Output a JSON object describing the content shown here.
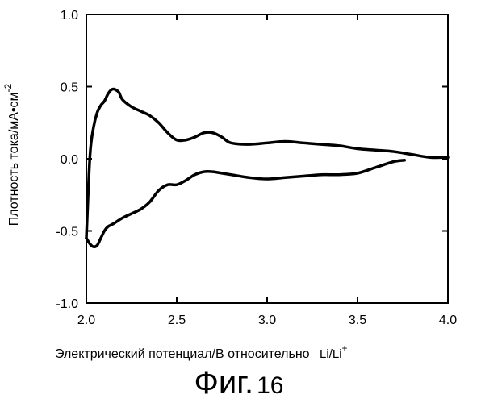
{
  "chart_data": {
    "type": "line",
    "xlabel": "Электрический потенциал/В относительно",
    "xlabel_unit": "Li/Li",
    "xlabel_unit_sup": "+",
    "ylabel": "Плотность тока/мА•см",
    "ylabel_sup": "-2",
    "xlim": [
      2.0,
      4.0
    ],
    "ylim": [
      -1.0,
      1.0
    ],
    "x_ticks": [
      "2.0",
      "2.5",
      "3.0",
      "3.5",
      "4.0"
    ],
    "y_ticks": [
      "1.0",
      "0.5",
      "0.0",
      "-0.5",
      "-1.0"
    ],
    "grid": false,
    "series": [
      {
        "color": "#000000",
        "x": [
          2.0,
          2.02,
          2.04,
          2.06,
          2.08,
          2.1,
          2.12,
          2.14,
          2.16,
          2.18,
          2.2,
          2.25,
          2.3,
          2.35,
          2.4,
          2.45,
          2.5,
          2.55,
          2.6,
          2.65,
          2.7,
          2.75,
          2.8,
          2.9,
          3.0,
          3.1,
          3.2,
          3.3,
          3.4,
          3.5,
          3.6,
          3.7,
          3.8,
          3.9,
          4.0
        ],
        "y": [
          -0.55,
          0.02,
          0.22,
          0.32,
          0.37,
          0.4,
          0.45,
          0.48,
          0.48,
          0.46,
          0.41,
          0.36,
          0.33,
          0.3,
          0.25,
          0.18,
          0.13,
          0.13,
          0.15,
          0.18,
          0.18,
          0.15,
          0.11,
          0.1,
          0.11,
          0.12,
          0.11,
          0.1,
          0.09,
          0.07,
          0.06,
          0.05,
          0.03,
          0.01,
          0.01
        ]
      },
      {
        "color": "#000000",
        "x": [
          2.0,
          2.02,
          2.04,
          2.06,
          2.08,
          2.1,
          2.12,
          2.15,
          2.2,
          2.25,
          2.3,
          2.35,
          2.4,
          2.45,
          2.5,
          2.55,
          2.6,
          2.65,
          2.7,
          2.75,
          2.8,
          2.9,
          3.0,
          3.1,
          3.2,
          3.3,
          3.4,
          3.5,
          3.6,
          3.7,
          3.76
        ],
        "y": [
          -0.55,
          -0.59,
          -0.61,
          -0.6,
          -0.55,
          -0.5,
          -0.47,
          -0.45,
          -0.41,
          -0.38,
          -0.35,
          -0.3,
          -0.22,
          -0.18,
          -0.18,
          -0.15,
          -0.11,
          -0.09,
          -0.09,
          -0.1,
          -0.11,
          -0.13,
          -0.14,
          -0.13,
          -0.12,
          -0.11,
          -0.11,
          -0.1,
          -0.06,
          -0.02,
          -0.01
        ]
      }
    ]
  },
  "caption": {
    "prefix": "Фиг.",
    "number": "16"
  }
}
